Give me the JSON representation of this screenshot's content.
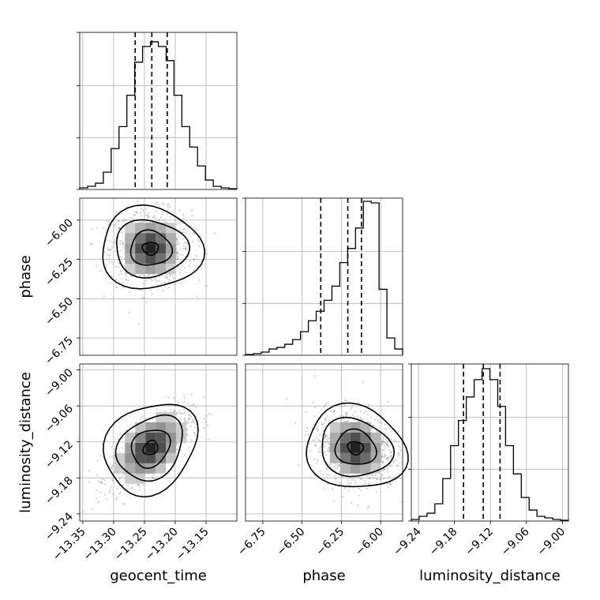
{
  "chart_data": {
    "type": "corner",
    "parameters": [
      "geocent_time",
      "phase",
      "luminosity_distance"
    ],
    "axis_labels": {
      "geocent_time": "geocent_time",
      "phase": "phase",
      "luminosity_distance": "luminosity_distance"
    },
    "ranges": {
      "geocent_time": [
        -13.355,
        -13.1
      ],
      "phase": [
        -6.86,
        -5.86
      ],
      "luminosity_distance": [
        -9.252,
        -8.99
      ]
    },
    "ticks": {
      "geocent_time": [
        "−13.35",
        "−13.30",
        "−13.25",
        "−13.20",
        "−13.15"
      ],
      "phase": [
        "−6.75",
        "−6.50",
        "−6.25",
        "−6.00"
      ],
      "luminosity_distance": [
        "−9.24",
        "−9.18",
        "−9.12",
        "−9.06",
        "−9.00"
      ]
    },
    "tick_values": {
      "geocent_time": [
        -13.35,
        -13.3,
        -13.25,
        -13.2,
        -13.15
      ],
      "phase": [
        -6.75,
        -6.5,
        -6.25,
        -6.0
      ],
      "luminosity_distance": [
        -9.24,
        -9.18,
        -9.12,
        -9.06,
        -9.0
      ]
    },
    "histograms": {
      "geocent_time": [
        0.01,
        0.02,
        0.04,
        0.11,
        0.26,
        0.4,
        0.6,
        0.81,
        0.91,
        0.94,
        0.91,
        0.82,
        0.6,
        0.4,
        0.27,
        0.15,
        0.06,
        0.02,
        0.01,
        0.005
      ],
      "phase": [
        0.005,
        0.01,
        0.02,
        0.04,
        0.05,
        0.07,
        0.1,
        0.15,
        0.22,
        0.28,
        0.35,
        0.44,
        0.59,
        0.68,
        0.81,
        0.98,
        0.97,
        0.42,
        0.11,
        0.04
      ],
      "luminosity_distance": [
        0.01,
        0.03,
        0.05,
        0.11,
        0.27,
        0.48,
        0.64,
        0.79,
        0.9,
        0.97,
        0.9,
        0.73,
        0.48,
        0.3,
        0.15,
        0.07,
        0.03,
        0.02,
        0.01,
        0.005
      ]
    },
    "quantiles": {
      "geocent_time": [
        -13.265,
        -13.238,
        -13.213
      ],
      "phase": [
        -6.381,
        -6.209,
        -6.122
      ],
      "luminosity_distance": [
        -9.165,
        -9.132,
        -9.104
      ]
    },
    "pair_peaks": {
      "phase_vs_geocent_time": [
        -13.24,
        -6.18
      ],
      "luminosity_distance_vs_geocent_time": [
        -13.24,
        -9.13
      ],
      "luminosity_distance_vs_phase": [
        -6.16,
        -9.13
      ]
    },
    "grid": true
  }
}
